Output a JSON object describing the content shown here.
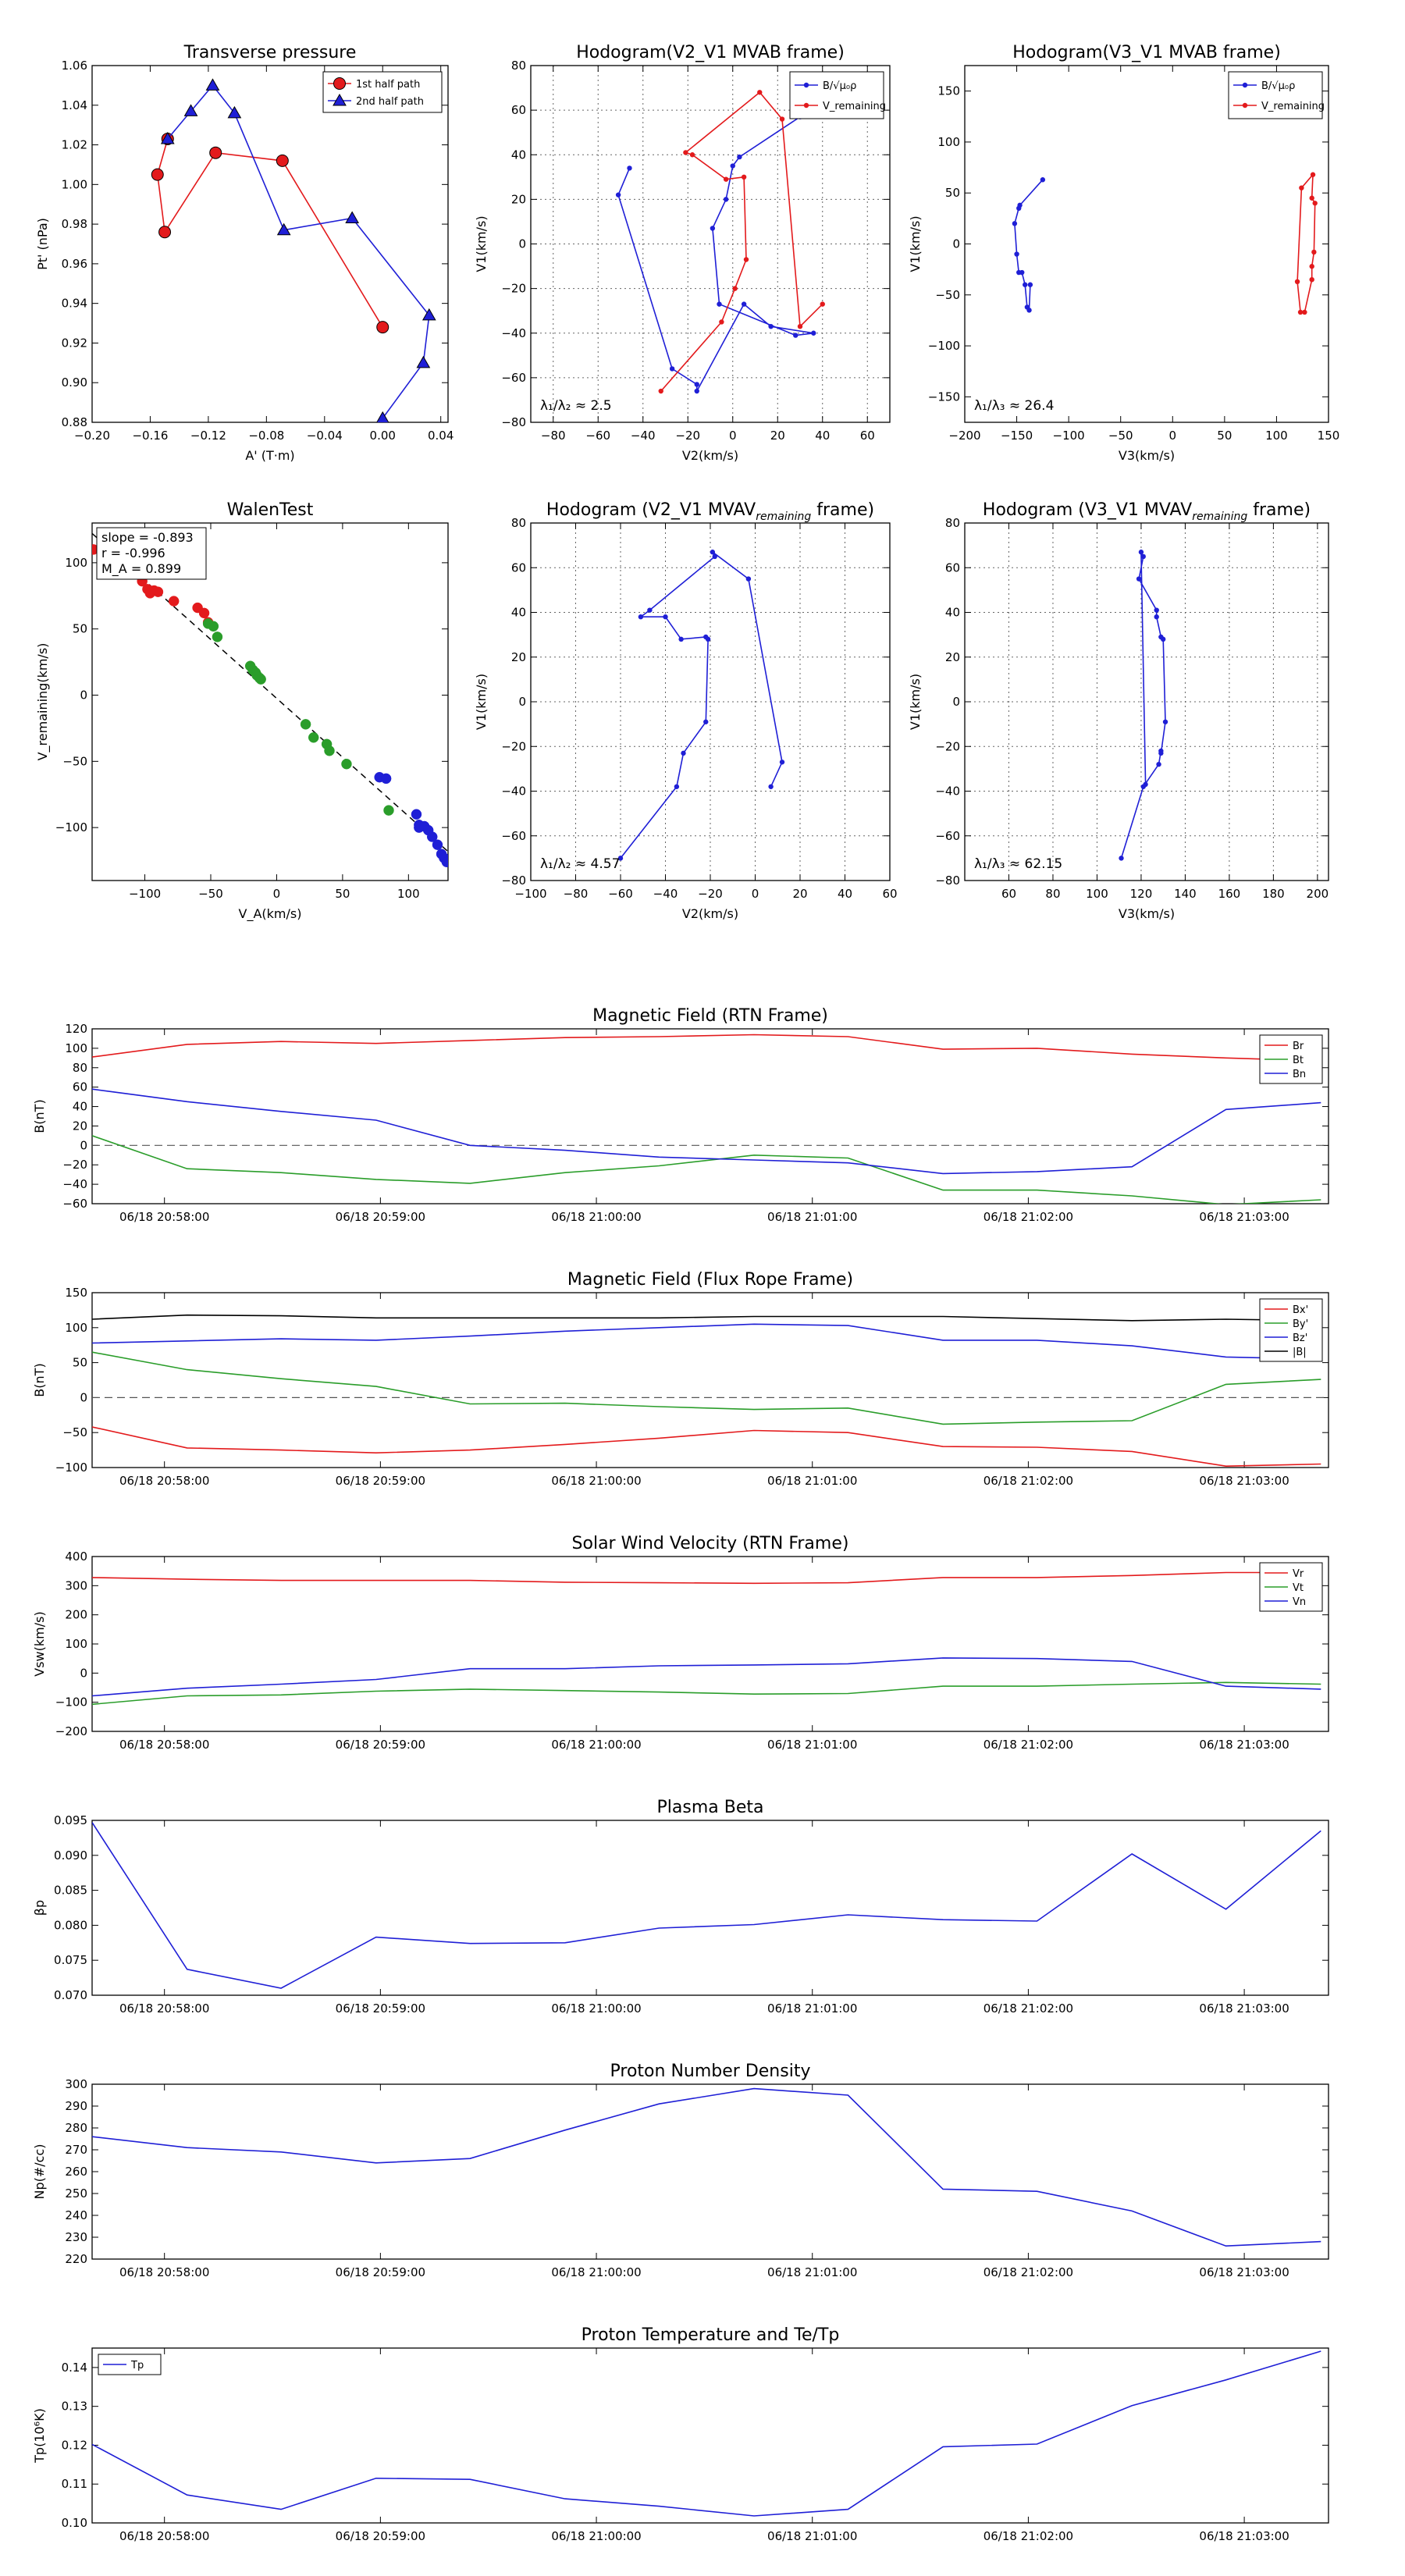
{
  "chart_data": [
    {
      "id": "tp",
      "type": "line",
      "title": "Transverse pressure",
      "xlabel": "A' (T·m)",
      "ylabel": "Pt' (nPa)",
      "xlim": [
        -0.2,
        0.045
      ],
      "ylim": [
        0.88,
        1.06
      ],
      "xticks": [
        -0.2,
        -0.16,
        -0.12,
        -0.08,
        -0.04,
        0.0,
        0.04
      ],
      "xticklabels": [
        "−0.20",
        "−0.16",
        "−0.12",
        "−0.08",
        "−0.04",
        "0.00",
        "0.04"
      ],
      "yticks": [
        0.88,
        0.9,
        0.92,
        0.94,
        0.96,
        0.98,
        1.0,
        1.02,
        1.04,
        1.06
      ],
      "yticklabels": [
        "0.88",
        "0.90",
        "0.92",
        "0.94",
        "0.96",
        "0.98",
        "1.00",
        "1.02",
        "1.04",
        "1.06"
      ],
      "legend": "top-right",
      "series": [
        {
          "name": "1st half path",
          "color": "#e31a1c",
          "marker": "o",
          "x": [
            0.0,
            -0.069,
            -0.115,
            -0.15,
            -0.155,
            -0.148
          ],
          "y": [
            0.928,
            1.012,
            1.016,
            0.976,
            1.005,
            1.023
          ]
        },
        {
          "name": "2nd half path",
          "color": "#1f1fd6",
          "marker": "^",
          "x": [
            0.0,
            0.028,
            0.032,
            -0.021,
            -0.068,
            -0.102,
            -0.117,
            -0.132,
            -0.148
          ],
          "y": [
            0.882,
            0.91,
            0.934,
            0.983,
            0.977,
            1.036,
            1.05,
            1.037,
            1.023
          ]
        }
      ]
    },
    {
      "id": "h1",
      "type": "line",
      "title": "Hodogram(V2_V1 MVAB frame)",
      "xlabel": "V2(km/s)",
      "ylabel": "V1(km/s)",
      "xlim": [
        -90,
        70
      ],
      "ylim": [
        -80,
        80
      ],
      "xticks": [
        -80,
        -60,
        -40,
        -20,
        0,
        20,
        40,
        60
      ],
      "xticklabels": [
        "−80",
        "−60",
        "−40",
        "−20",
        "0",
        "20",
        "40",
        "60"
      ],
      "yticks": [
        -80,
        -60,
        -40,
        -20,
        0,
        20,
        40,
        60,
        80
      ],
      "yticklabels": [
        "−80",
        "−60",
        "−40",
        "−20",
        "0",
        "20",
        "40",
        "60",
        "80"
      ],
      "grid": true,
      "legend": "top-right",
      "legend_labels": [
        "B/√μ₀ρ",
        "V_remaining"
      ],
      "annotation": "λ₁/λ₂ ≈ 2.5",
      "series": [
        {
          "name": "B/√μ₀ρ",
          "color": "#1f1fd6",
          "marker": ".",
          "x": [
            -46,
            -51,
            -27,
            -16,
            -16,
            5,
            17,
            36,
            28,
            -6,
            -9,
            -3,
            0,
            3,
            30
          ],
          "y": [
            34,
            22,
            -56,
            -63,
            -66,
            -27,
            -37,
            -40,
            -41,
            -27,
            7,
            20,
            35,
            39,
            57
          ]
        },
        {
          "name": "V_remaining",
          "color": "#e31a1c",
          "marker": ".",
          "x": [
            -32,
            -5,
            1,
            6,
            5,
            -3,
            -18,
            -21,
            12,
            22,
            30,
            40
          ],
          "y": [
            -66,
            -35,
            -20,
            -7,
            30,
            29,
            40,
            41,
            68,
            56,
            -37,
            -27
          ]
        }
      ]
    },
    {
      "id": "h2",
      "type": "line",
      "title": "Hodogram(V3_V1 MVAB frame)",
      "xlabel": "V3(km/s)",
      "ylabel": "V1(km/s)",
      "xlim": [
        -200,
        150
      ],
      "ylim": [
        -175,
        175
      ],
      "xticks": [
        -200,
        -150,
        -100,
        -50,
        0,
        50,
        100,
        150
      ],
      "xticklabels": [
        "−200",
        "−150",
        "−100",
        "−50",
        "0",
        "50",
        "100",
        "150"
      ],
      "yticks": [
        -150,
        -100,
        -50,
        0,
        50,
        100,
        150
      ],
      "yticklabels": [
        "−150",
        "−100",
        "−50",
        "0",
        "50",
        "100",
        "150"
      ],
      "legend": "top-right",
      "legend_labels": [
        "B/√μ₀ρ",
        "V_remaining"
      ],
      "annotation": "λ₁/λ₃ ≈ 26.4",
      "series": [
        {
          "name": "B/√μ₀ρ",
          "color": "#1f1fd6",
          "marker": ".",
          "x": [
            -125,
            -147,
            -148,
            -152,
            -150,
            -148,
            -145,
            -142,
            -140,
            -138,
            -137
          ],
          "y": [
            63,
            38,
            35,
            20,
            -10,
            -28,
            -28,
            -40,
            -62,
            -65,
            -40
          ]
        },
        {
          "name": "V_remaining",
          "color": "#e31a1c",
          "marker": ".",
          "x": [
            123,
            120,
            124,
            135,
            134,
            137,
            136,
            134,
            134,
            127
          ],
          "y": [
            -67,
            -37,
            55,
            68,
            45,
            40,
            -8,
            -22,
            -35,
            -67
          ]
        }
      ]
    },
    {
      "id": "walen",
      "type": "scatter",
      "title": "WalenTest",
      "xlabel": "V_A(km/s)",
      "ylabel": "V_remaining(km/s)",
      "xlim": [
        -140,
        130
      ],
      "ylim": [
        -140,
        130
      ],
      "xticks": [
        -100,
        -50,
        0,
        50,
        100
      ],
      "xticklabels": [
        "−100",
        "−50",
        "0",
        "50",
        "100"
      ],
      "yticks": [
        -100,
        -50,
        0,
        50,
        100
      ],
      "yticklabels": [
        "−100",
        "−50",
        "0",
        "50",
        "100"
      ],
      "fit_line": {
        "x": [
          -140,
          130
        ],
        "y": [
          122.1,
          -118.1
        ]
      },
      "stats": [
        "slope = -0.893",
        "r = -0.996",
        "M_A = 0.899"
      ],
      "series": [
        {
          "name": "red",
          "color": "#e31a1c",
          "x": [
            -139,
            -102,
            -98,
            -96,
            -93,
            -90,
            -78,
            -60,
            -55,
            -52
          ],
          "y": [
            110,
            86,
            80,
            77,
            79,
            78,
            71,
            66,
            62,
            55
          ]
        },
        {
          "name": "green",
          "color": "#2a9d2a",
          "x": [
            -52,
            -48,
            -45,
            -20,
            -18,
            -16,
            -15,
            -13,
            -12,
            22,
            28,
            38,
            40,
            53,
            85
          ],
          "y": [
            54,
            52,
            44,
            22,
            19,
            17,
            15,
            13,
            12,
            -22,
            -32,
            -37,
            -42,
            -52,
            -87
          ]
        },
        {
          "name": "blue",
          "color": "#1f1fd6",
          "x": [
            78,
            83,
            106,
            108,
            108,
            112,
            115,
            118,
            122,
            125,
            127,
            129
          ],
          "y": [
            -62,
            -63,
            -90,
            -98,
            -100,
            -99,
            -102,
            -107,
            -113,
            -120,
            -123,
            -126
          ]
        }
      ]
    },
    {
      "id": "h3",
      "type": "line",
      "title": "Hodogram (V2_V1 MVAV_remaining frame)",
      "xlabel": "V2(km/s)",
      "ylabel": "V1(km/s)",
      "xlim": [
        -100,
        60
      ],
      "ylim": [
        -80,
        80
      ],
      "xticks": [
        -100,
        -80,
        -60,
        -40,
        -20,
        0,
        20,
        40,
        60
      ],
      "xticklabels": [
        "−100",
        "−80",
        "−60",
        "−40",
        "−20",
        "0",
        "20",
        "40",
        "60"
      ],
      "yticks": [
        -80,
        -60,
        -40,
        -20,
        0,
        20,
        40,
        60,
        80
      ],
      "yticklabels": [
        "−80",
        "−60",
        "−40",
        "−20",
        "0",
        "20",
        "40",
        "60",
        "80"
      ],
      "grid": true,
      "annotation": "λ₁/λ₂ ≈ 4.57",
      "series": [
        {
          "name": "V",
          "color": "#1f1fd6",
          "marker": ".",
          "x": [
            -60,
            -35,
            -32,
            -22,
            -21,
            -22,
            -33,
            -40,
            -51,
            -47,
            -18,
            -19,
            -3,
            12,
            7
          ],
          "y": [
            -70,
            -38,
            -23,
            -9,
            28,
            29,
            28,
            38,
            38,
            41,
            65,
            67,
            55,
            -27,
            -38
          ]
        }
      ]
    },
    {
      "id": "h4",
      "type": "line",
      "title": "Hodogram (V3_V1 MVAV_remaining frame)",
      "xlabel": "V3(km/s)",
      "ylabel": "V1(km/s)",
      "xlim": [
        40,
        205
      ],
      "ylim": [
        -80,
        80
      ],
      "xticks": [
        60,
        80,
        100,
        120,
        140,
        160,
        180,
        200
      ],
      "xticklabels": [
        "60",
        "80",
        "100",
        "120",
        "140",
        "160",
        "180",
        "200"
      ],
      "yticks": [
        -80,
        -60,
        -40,
        -20,
        0,
        20,
        40,
        60,
        80
      ],
      "yticklabels": [
        "−80",
        "−60",
        "−40",
        "−20",
        "0",
        "20",
        "40",
        "60",
        "80"
      ],
      "grid": true,
      "annotation": "λ₁/λ₃ ≈ 62.15",
      "series": [
        {
          "name": "V",
          "color": "#1f1fd6",
          "marker": ".",
          "x": [
            111,
            121,
            128,
            129,
            129,
            131,
            130,
            129,
            127,
            127,
            119,
            121,
            120,
            122
          ],
          "y": [
            -70,
            -38,
            -28,
            -22,
            -23,
            -9,
            28,
            29,
            38,
            41,
            55,
            65,
            67,
            -37
          ]
        }
      ]
    },
    {
      "id": "bfield",
      "type": "line",
      "title": "Magnetic Field (RTN Frame)",
      "ylabel": "B(nT)",
      "ylim": [
        -60,
        120
      ],
      "yticks": [
        -60,
        -40,
        -20,
        0,
        20,
        40,
        60,
        80,
        100,
        120
      ],
      "yticklabels": [
        "−60",
        "−40",
        "−20",
        "0",
        "20",
        "40",
        "60",
        "80",
        "100",
        "120"
      ],
      "zero_line": true,
      "legend": "top-right",
      "legend_labels": [
        "Br",
        "Bt",
        "Bn"
      ],
      "series": [
        {
          "name": "Br",
          "color": "#e31a1c",
          "y": [
            91,
            104,
            107,
            105,
            108,
            111,
            112,
            114,
            112,
            99,
            100,
            94,
            90,
            87
          ]
        },
        {
          "name": "Bt",
          "color": "#2a9d2a",
          "y": [
            10,
            -24,
            -28,
            -35,
            -39,
            -28,
            -21,
            -10,
            -13,
            -46,
            -46,
            -52,
            -61,
            -56
          ]
        },
        {
          "name": "Bn",
          "color": "#1f1fd6",
          "y": [
            58,
            45,
            35,
            26,
            0,
            -5,
            -12,
            -15,
            -18,
            -29,
            -27,
            -22,
            37,
            44
          ]
        }
      ]
    },
    {
      "id": "bflux",
      "type": "line",
      "title": "Magnetic Field (Flux Rope Frame)",
      "ylabel": "B(nT)",
      "ylim": [
        -100,
        150
      ],
      "yticks": [
        -100,
        -50,
        0,
        50,
        100,
        150
      ],
      "yticklabels": [
        "−100",
        "−50",
        "0",
        "50",
        "100",
        "150"
      ],
      "zero_line": true,
      "legend": "top-right",
      "legend_labels": [
        "Bx'",
        "By'",
        "Bz'",
        "|B|"
      ],
      "series": [
        {
          "name": "Bx'",
          "color": "#e31a1c",
          "y": [
            -42,
            -72,
            -75,
            -79,
            -75,
            -67,
            -58,
            -47,
            -50,
            -70,
            -71,
            -77,
            -98,
            -95
          ]
        },
        {
          "name": "By'",
          "color": "#2a9d2a",
          "y": [
            65,
            40,
            27,
            16,
            -9,
            -8,
            -13,
            -17,
            -15,
            -38,
            -35,
            -33,
            19,
            26
          ]
        },
        {
          "name": "Bz'",
          "color": "#1f1fd6",
          "y": [
            78,
            81,
            84,
            82,
            88,
            95,
            100,
            105,
            103,
            82,
            82,
            74,
            58,
            55
          ]
        },
        {
          "name": "|B|",
          "color": "#000000",
          "y": [
            112,
            118,
            117,
            114,
            114,
            114,
            114,
            116,
            116,
            116,
            113,
            110,
            112,
            110
          ]
        }
      ]
    },
    {
      "id": "vsw",
      "type": "line",
      "title": "Solar Wind Velocity (RTN Frame)",
      "ylabel": "Vsw(km/s)",
      "ylim": [
        -200,
        400
      ],
      "yticks": [
        -200,
        -100,
        0,
        100,
        200,
        300,
        400
      ],
      "yticklabels": [
        "−200",
        "−100",
        "0",
        "100",
        "200",
        "300",
        "400"
      ],
      "legend": "top-right",
      "legend_labels": [
        "Vr",
        "Vt",
        "Vn"
      ],
      "series": [
        {
          "name": "Vr",
          "color": "#e31a1c",
          "y": [
            328,
            322,
            318,
            318,
            318,
            312,
            310,
            308,
            310,
            328,
            328,
            335,
            345,
            345
          ]
        },
        {
          "name": "Vt",
          "color": "#2a9d2a",
          "y": [
            -107,
            -78,
            -75,
            -62,
            -55,
            -60,
            -65,
            -72,
            -70,
            -45,
            -45,
            -38,
            -32,
            -38
          ]
        },
        {
          "name": "Vn",
          "color": "#1f1fd6",
          "y": [
            -78,
            -52,
            -38,
            -22,
            15,
            15,
            25,
            28,
            32,
            52,
            50,
            40,
            -45,
            -55
          ]
        }
      ]
    },
    {
      "id": "beta",
      "type": "line",
      "title": "Plasma Beta",
      "ylabel": "βp",
      "ylim": [
        0.07,
        0.095
      ],
      "yticks": [
        0.07,
        0.075,
        0.08,
        0.085,
        0.09,
        0.095
      ],
      "yticklabels": [
        "0.070",
        "0.075",
        "0.080",
        "0.085",
        "0.090",
        "0.095"
      ],
      "series": [
        {
          "name": "beta",
          "color": "#1f1fd6",
          "y": [
            0.0947,
            0.0737,
            0.071,
            0.0783,
            0.0774,
            0.0775,
            0.0796,
            0.0801,
            0.0815,
            0.0808,
            0.0806,
            0.0902,
            0.0823,
            0.0935
          ]
        }
      ]
    },
    {
      "id": "np",
      "type": "line",
      "title": "Proton Number Density",
      "ylabel": "Np(#/cc)",
      "ylim": [
        220,
        300
      ],
      "yticks": [
        220,
        230,
        240,
        250,
        260,
        270,
        280,
        290,
        300
      ],
      "yticklabels": [
        "220",
        "230",
        "240",
        "250",
        "260",
        "270",
        "280",
        "290",
        "300"
      ],
      "series": [
        {
          "name": "Np",
          "color": "#1f1fd6",
          "y": [
            276,
            271,
            269,
            264,
            266,
            279,
            291,
            298,
            295,
            252,
            251,
            242,
            226,
            228
          ]
        }
      ]
    },
    {
      "id": "tpp",
      "type": "line",
      "title": "Proton Temperature and Te/Tp",
      "ylabel": "Tp(10⁶K)",
      "ylim": [
        0.1,
        0.145
      ],
      "yticks": [
        0.1,
        0.11,
        0.12,
        0.13,
        0.14
      ],
      "yticklabels": [
        "0.10",
        "0.11",
        "0.12",
        "0.13",
        "0.14"
      ],
      "legend": "top-left",
      "legend_labels": [
        "Tp"
      ],
      "series": [
        {
          "name": "Tp",
          "color": "#1f1fd6",
          "y": [
            0.1202,
            0.1072,
            0.1035,
            0.1115,
            0.1112,
            0.1062,
            0.1043,
            0.1018,
            0.1035,
            0.1196,
            0.1203,
            0.1302,
            0.1368,
            0.1442
          ]
        }
      ]
    }
  ],
  "time_axis": {
    "times_min": [
      0,
      0.88,
      1.75,
      2.63,
      3.5,
      4.38,
      5.25,
      6.13,
      7.0,
      7.88,
      8.75,
      9.63,
      10.5,
      11.38
    ],
    "tick_min": [
      0.67,
      2.67,
      4.67,
      6.67,
      8.67,
      10.67
    ],
    "tick_labels": [
      "06/18 20:58:00",
      "06/18 20:59:00",
      "06/18 21:00:00",
      "06/18 21:01:00",
      "06/18 21:02:00",
      "06/18 21:03:00"
    ],
    "range_min": [
      0,
      11.45
    ]
  }
}
